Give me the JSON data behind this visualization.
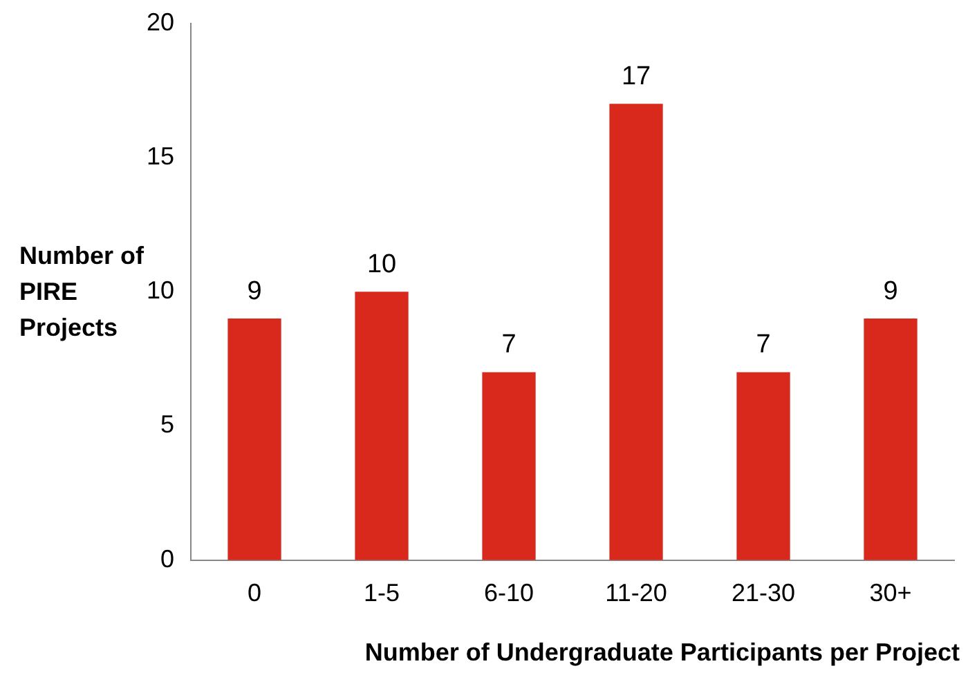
{
  "chart_data": {
    "type": "bar",
    "xlabel": "Number of Undergraduate Participants per Project",
    "ylabel": "Number of PIRE Projects",
    "categories": [
      "0",
      "1-5",
      "6-10",
      "11-20",
      "21-30",
      "30+"
    ],
    "values": [
      9,
      10,
      7,
      17,
      7,
      9
    ],
    "color": "#d9291c",
    "ylim": [
      0,
      20
    ],
    "yticks": [
      0,
      5,
      10,
      15,
      20
    ],
    "grid": false,
    "data_labels": true
  }
}
